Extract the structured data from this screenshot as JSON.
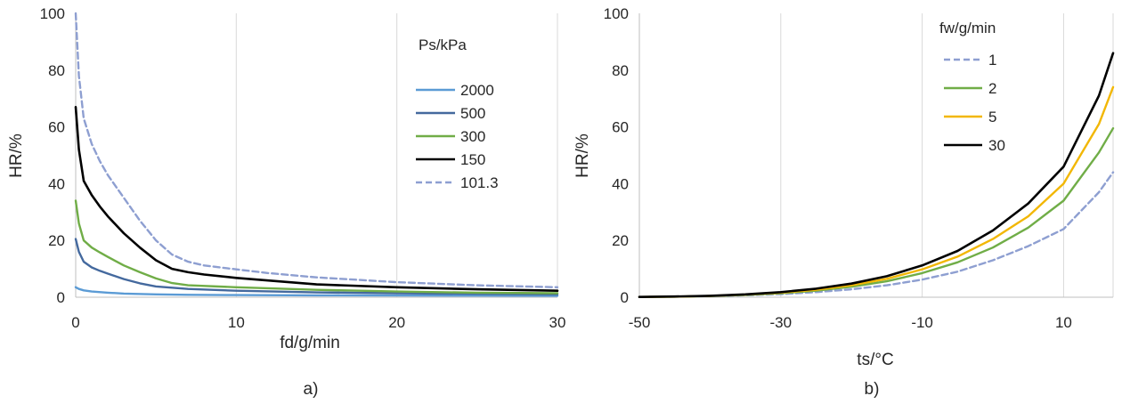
{
  "chart_data": [
    {
      "type": "line",
      "panel_label": "a)",
      "xlabel": "fd/g/min",
      "ylabel": "HR/%",
      "xlim": [
        0,
        30
      ],
      "ylim": [
        0,
        100
      ],
      "xticks": [
        "0",
        "10",
        "20",
        "30"
      ],
      "yticks": [
        "0",
        "20",
        "40",
        "60",
        "80",
        "100"
      ],
      "grid": "vertical",
      "legend": {
        "title": "Ps/kPa",
        "position": "top-right"
      },
      "series": [
        {
          "name": "2000",
          "color": "#5b9bd5",
          "dash": false,
          "x": [
            0,
            0.2,
            0.5,
            1,
            2,
            3,
            5,
            7,
            10,
            15,
            20,
            25,
            30
          ],
          "y": [
            3.5,
            2.9,
            2.4,
            2.0,
            1.6,
            1.3,
            1.0,
            0.85,
            0.75,
            0.65,
            0.6,
            0.55,
            0.5
          ]
        },
        {
          "name": "500",
          "color": "#44699e",
          "dash": false,
          "x": [
            0,
            0.2,
            0.5,
            1,
            1.5,
            2,
            3,
            4,
            5,
            7,
            10,
            15,
            20,
            25,
            30
          ],
          "y": [
            20.5,
            16,
            12.5,
            10.5,
            9.3,
            8.3,
            6.4,
            4.9,
            3.8,
            2.9,
            2.3,
            1.7,
            1.4,
            1.2,
            1.0
          ]
        },
        {
          "name": "300",
          "color": "#70ad47",
          "dash": false,
          "x": [
            0,
            0.2,
            0.5,
            1,
            1.5,
            2,
            3,
            4,
            5,
            6,
            7,
            10,
            15,
            20,
            25,
            30
          ],
          "y": [
            34,
            26,
            20,
            17.5,
            15.8,
            14.2,
            11.2,
            8.8,
            6.6,
            5.0,
            4.2,
            3.5,
            2.6,
            2.0,
            1.6,
            1.4
          ]
        },
        {
          "name": "150",
          "color": "#000000",
          "dash": false,
          "x": [
            0,
            0.2,
            0.5,
            1,
            1.5,
            2,
            3,
            4,
            5,
            6,
            7,
            8,
            10,
            15,
            20,
            25,
            30
          ],
          "y": [
            67,
            52,
            41,
            36,
            32,
            28.5,
            22.5,
            17.5,
            13,
            10,
            8.8,
            8.0,
            6.8,
            4.5,
            3.5,
            2.8,
            2.3
          ]
        },
        {
          "name": "101.3",
          "color": "#8e9fd1",
          "dash": true,
          "x": [
            0,
            0.2,
            0.5,
            1,
            1.5,
            2,
            3,
            4,
            5,
            6,
            7,
            8,
            10,
            12,
            15,
            20,
            25,
            30
          ],
          "y": [
            100,
            78,
            63,
            54,
            48,
            43,
            35,
            27,
            20,
            15,
            12.5,
            11.2,
            9.8,
            8.5,
            7.0,
            5.3,
            4.2,
            3.5
          ]
        }
      ]
    },
    {
      "type": "line",
      "panel_label": "b)",
      "xlabel": "ts/°C",
      "ylabel": "HR/%",
      "xlim": [
        -50,
        17
      ],
      "ylim": [
        0,
        100
      ],
      "xticks": [
        "-50",
        "-30",
        "-10",
        "10"
      ],
      "xtick_values": [
        -50,
        -30,
        -10,
        10
      ],
      "yticks": [
        "0",
        "20",
        "40",
        "60",
        "80",
        "100"
      ],
      "grid": "vertical",
      "legend": {
        "title": "fw/g/min",
        "position": "top-right"
      },
      "series": [
        {
          "name": "1",
          "color": "#8e9fd1",
          "dash": true,
          "x": [
            -50,
            -45,
            -40,
            -35,
            -30,
            -25,
            -20,
            -15,
            -10,
            -5,
            0,
            5,
            10,
            15,
            17
          ],
          "y": [
            0.1,
            0.2,
            0.4,
            0.7,
            1.1,
            1.8,
            2.8,
            4.2,
            6.2,
            9.0,
            13,
            18,
            24,
            37,
            44
          ]
        },
        {
          "name": "2",
          "color": "#70ad47",
          "dash": false,
          "x": [
            -50,
            -45,
            -40,
            -35,
            -30,
            -25,
            -20,
            -15,
            -10,
            -5,
            0,
            5,
            10,
            15,
            17
          ],
          "y": [
            0.1,
            0.2,
            0.4,
            0.8,
            1.4,
            2.3,
            3.7,
            5.6,
            8.5,
            12.3,
            17.5,
            24.5,
            34,
            51,
            59.5
          ]
        },
        {
          "name": "5",
          "color": "#f2b705",
          "dash": false,
          "x": [
            -50,
            -45,
            -40,
            -35,
            -30,
            -25,
            -20,
            -15,
            -10,
            -5,
            0,
            5,
            10,
            15,
            17
          ],
          "y": [
            0.1,
            0.2,
            0.45,
            0.9,
            1.6,
            2.6,
            4.2,
            6.5,
            9.8,
            14.3,
            20.5,
            28.5,
            40,
            61,
            74
          ]
        },
        {
          "name": "30",
          "color": "#000000",
          "dash": false,
          "x": [
            -50,
            -45,
            -40,
            -35,
            -30,
            -25,
            -20,
            -15,
            -10,
            -5,
            0,
            5,
            10,
            15,
            17
          ],
          "y": [
            0.1,
            0.25,
            0.5,
            1.0,
            1.8,
            3.0,
            4.8,
            7.4,
            11.2,
            16.3,
            23.5,
            33,
            46,
            71,
            86
          ]
        }
      ]
    }
  ]
}
